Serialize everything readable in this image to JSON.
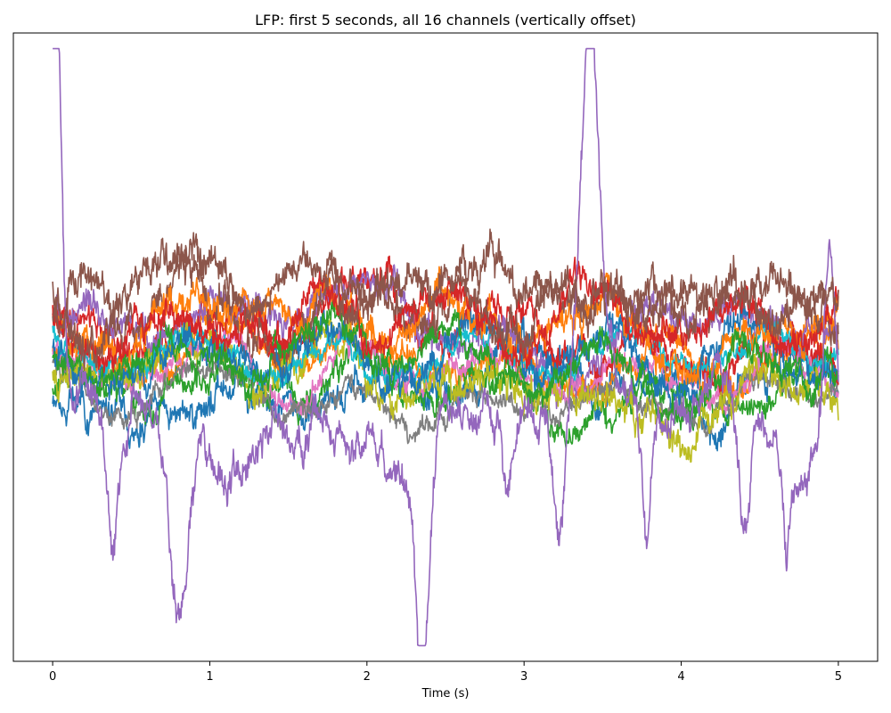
{
  "chart_data": {
    "type": "line",
    "title": "LFP: first 5 seconds, all 16 channels (vertically offset)",
    "xlabel": "Time (s)",
    "ylabel": "",
    "xlim": [
      -0.25,
      5.25
    ],
    "ylim": [
      -1.0,
      1.0
    ],
    "xticks": [
      0,
      1,
      2,
      3,
      4,
      5
    ],
    "xtick_labels": [
      "0",
      "1",
      "2",
      "3",
      "4",
      "5"
    ],
    "yticks_visible": false,
    "grid": false,
    "legend": "none",
    "series": [
      {
        "color": "#1f77b4",
        "offset": -0.16,
        "amp": 0.22,
        "seed": 11
      },
      {
        "color": "#ff7f0e",
        "offset": -0.02,
        "amp": 0.2,
        "seed": 23
      },
      {
        "color": "#2ca02c",
        "offset": -0.14,
        "amp": 0.2,
        "seed": 37
      },
      {
        "color": "#d62728",
        "offset": 0.04,
        "amp": 0.22,
        "seed": 41
      },
      {
        "color": "#9467bd",
        "offset": 0.1,
        "amp": 0.22,
        "seed": 53
      },
      {
        "color": "#8c564b",
        "offset": 0.16,
        "amp": 0.28,
        "seed": 67
      },
      {
        "color": "#e377c2",
        "offset": -0.08,
        "amp": 0.16,
        "seed": 71
      },
      {
        "color": "#7f7f7f",
        "offset": -0.12,
        "amp": 0.16,
        "seed": 83
      },
      {
        "color": "#bcbd22",
        "offset": -0.1,
        "amp": 0.24,
        "seed": 97
      },
      {
        "color": "#17becf",
        "offset": 0.0,
        "amp": 0.14,
        "seed": 101
      },
      {
        "color": "#1f77b4",
        "offset": -0.04,
        "amp": 0.22,
        "seed": 113
      },
      {
        "color": "#ff7f0e",
        "offset": 0.06,
        "amp": 0.22,
        "seed": 127
      },
      {
        "color": "#2ca02c",
        "offset": -0.06,
        "amp": 0.2,
        "seed": 131
      },
      {
        "color": "#d62728",
        "offset": 0.08,
        "amp": 0.22,
        "seed": 149
      },
      {
        "color": "#9467bd",
        "offset": -0.22,
        "amp": 0.26,
        "seed": 151,
        "spikes": true
      },
      {
        "color": "#8c564b",
        "offset": 0.12,
        "amp": 0.28,
        "seed": 163
      }
    ]
  }
}
